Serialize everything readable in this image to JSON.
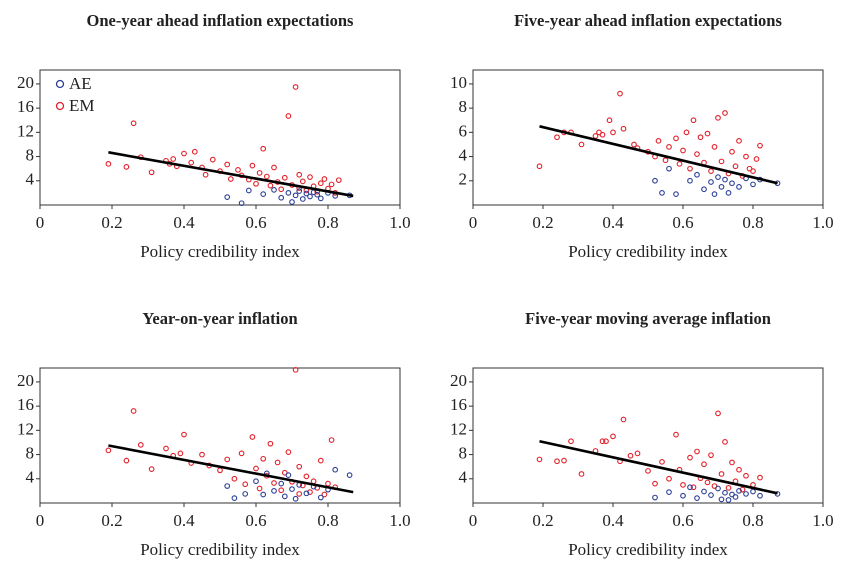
{
  "chart_data": [
    {
      "type": "scatter",
      "title": "One-year ahead inflation expectations",
      "xlabel": "Policy credibility index",
      "xlim": [
        0,
        1
      ],
      "xticks": [
        0,
        0.2,
        0.4,
        0.6,
        0.8,
        {
          "value": 1,
          "label": "1.0"
        }
      ],
      "ylim": [
        0,
        22.3
      ],
      "yticks": [
        4,
        8,
        12,
        16,
        20
      ],
      "legend": "upper left",
      "series": [
        {
          "name": "AE",
          "color": "#2b3f96",
          "x": [
            0.52,
            0.56,
            0.58,
            0.62,
            0.65,
            0.67,
            0.69,
            0.7,
            0.71,
            0.72,
            0.73,
            0.74,
            0.75,
            0.76,
            0.77,
            0.78,
            0.8,
            0.82,
            0.86
          ],
          "values": [
            1.3,
            0.3,
            2.4,
            1.8,
            2.5,
            1.2,
            2.0,
            0.5,
            1.6,
            2.3,
            1.0,
            1.9,
            1.4,
            2.1,
            1.7,
            1.1,
            2.0,
            1.5,
            1.6
          ]
        },
        {
          "name": "EM",
          "color": "#e3202a",
          "x": [
            0.19,
            0.24,
            0.26,
            0.28,
            0.31,
            0.35,
            0.36,
            0.37,
            0.38,
            0.4,
            0.42,
            0.43,
            0.45,
            0.46,
            0.48,
            0.5,
            0.52,
            0.53,
            0.55,
            0.56,
            0.58,
            0.59,
            0.6,
            0.61,
            0.62,
            0.63,
            0.64,
            0.65,
            0.66,
            0.67,
            0.68,
            0.69,
            0.7,
            0.71,
            0.72,
            0.72,
            0.73,
            0.74,
            0.75,
            0.76,
            0.77,
            0.78,
            0.79,
            0.8,
            0.81,
            0.82,
            0.83
          ],
          "values": [
            6.8,
            6.3,
            13.5,
            7.9,
            5.4,
            7.3,
            6.8,
            7.6,
            6.4,
            8.5,
            7.0,
            8.8,
            6.2,
            5.0,
            7.5,
            5.6,
            6.7,
            4.3,
            5.8,
            4.9,
            4.2,
            6.5,
            3.5,
            5.3,
            9.3,
            4.7,
            3.2,
            6.2,
            3.8,
            2.6,
            4.5,
            14.7,
            3.3,
            19.5,
            2.8,
            5.0,
            3.9,
            2.4,
            4.6,
            3.1,
            2.2,
            3.6,
            4.3,
            2.7,
            3.4,
            2.0,
            4.1
          ]
        }
      ],
      "fit_line": {
        "x": [
          0.19,
          0.87
        ],
        "y": [
          8.7,
          1.5
        ]
      }
    },
    {
      "type": "scatter",
      "title": "Five-year ahead inflation expectations",
      "xlabel": "Policy credibility index",
      "xlim": [
        0,
        1
      ],
      "xticks": [
        0,
        0.2,
        0.4,
        0.6,
        0.8,
        {
          "value": 1,
          "label": "1.0"
        }
      ],
      "ylim": [
        0,
        11.15
      ],
      "yticks": [
        2,
        4,
        6,
        8,
        10
      ],
      "legend": false,
      "series": [
        {
          "name": "AE",
          "color": "#2b3f96",
          "x": [
            0.52,
            0.54,
            0.56,
            0.58,
            0.62,
            0.64,
            0.66,
            0.68,
            0.69,
            0.7,
            0.71,
            0.72,
            0.73,
            0.74,
            0.76,
            0.78,
            0.8,
            0.82,
            0.87
          ],
          "values": [
            2.0,
            1.0,
            3.0,
            0.9,
            2.0,
            2.5,
            1.3,
            1.9,
            0.9,
            2.3,
            1.5,
            2.1,
            1.0,
            1.8,
            1.5,
            2.2,
            1.7,
            2.1,
            1.8
          ]
        },
        {
          "name": "EM",
          "color": "#e3202a",
          "x": [
            0.19,
            0.24,
            0.26,
            0.28,
            0.31,
            0.35,
            0.36,
            0.37,
            0.39,
            0.4,
            0.42,
            0.43,
            0.46,
            0.47,
            0.5,
            0.52,
            0.53,
            0.55,
            0.56,
            0.58,
            0.59,
            0.6,
            0.61,
            0.62,
            0.63,
            0.64,
            0.65,
            0.66,
            0.67,
            0.68,
            0.69,
            0.7,
            0.71,
            0.72,
            0.73,
            0.74,
            0.75,
            0.76,
            0.77,
            0.78,
            0.79,
            0.8,
            0.81,
            0.82
          ],
          "values": [
            3.2,
            5.6,
            6.0,
            6.0,
            5.0,
            5.7,
            6.0,
            5.8,
            7.0,
            6.0,
            9.2,
            6.3,
            5.0,
            4.7,
            4.4,
            4.0,
            5.3,
            3.7,
            4.8,
            5.5,
            3.4,
            4.5,
            6.0,
            3.0,
            7.0,
            4.2,
            5.6,
            3.5,
            5.9,
            2.8,
            4.8,
            7.2,
            3.6,
            7.6,
            2.6,
            4.4,
            3.2,
            5.3,
            2.4,
            4.0,
            3.0,
            2.8,
            3.8,
            4.9
          ]
        }
      ],
      "fit_line": {
        "x": [
          0.19,
          0.87
        ],
        "y": [
          6.5,
          1.8
        ]
      }
    },
    {
      "type": "scatter",
      "title": "Year-on-year inflation",
      "xlabel": "Policy credibility index",
      "xlim": [
        0,
        1
      ],
      "xticks": [
        0,
        0.2,
        0.4,
        0.6,
        0.8,
        {
          "value": 1,
          "label": "1.0"
        }
      ],
      "ylim": [
        0,
        22.3
      ],
      "yticks": [
        4,
        8,
        12,
        16,
        20
      ],
      "legend": false,
      "series": [
        {
          "name": "AE",
          "color": "#2b3f96",
          "x": [
            0.52,
            0.54,
            0.57,
            0.6,
            0.62,
            0.63,
            0.65,
            0.67,
            0.68,
            0.69,
            0.7,
            0.71,
            0.72,
            0.74,
            0.76,
            0.78,
            0.8,
            0.82,
            0.86
          ],
          "values": [
            2.8,
            0.8,
            1.5,
            3.6,
            1.4,
            4.9,
            2.0,
            3.2,
            1.1,
            4.6,
            2.3,
            0.7,
            3.0,
            1.6,
            2.7,
            0.9,
            2.2,
            5.5,
            4.6
          ]
        },
        {
          "name": "EM",
          "color": "#e3202a",
          "x": [
            0.19,
            0.24,
            0.26,
            0.28,
            0.31,
            0.35,
            0.37,
            0.39,
            0.4,
            0.42,
            0.45,
            0.47,
            0.5,
            0.52,
            0.54,
            0.56,
            0.57,
            0.59,
            0.6,
            0.61,
            0.62,
            0.63,
            0.64,
            0.65,
            0.66,
            0.67,
            0.68,
            0.69,
            0.7,
            0.71,
            0.72,
            0.72,
            0.73,
            0.74,
            0.75,
            0.76,
            0.77,
            0.78,
            0.79,
            0.8,
            0.81,
            0.82
          ],
          "values": [
            8.7,
            7.0,
            15.2,
            9.6,
            5.6,
            9.0,
            7.8,
            8.2,
            11.3,
            6.6,
            8.0,
            6.2,
            5.4,
            7.2,
            4.0,
            8.2,
            3.1,
            10.9,
            5.7,
            2.4,
            7.3,
            4.5,
            9.8,
            3.3,
            6.7,
            2.1,
            5.0,
            8.4,
            3.5,
            22.0,
            1.5,
            6.0,
            2.9,
            4.4,
            1.8,
            3.6,
            2.5,
            7.0,
            1.4,
            3.2,
            10.4,
            2.6
          ]
        }
      ],
      "fit_line": {
        "x": [
          0.19,
          0.87
        ],
        "y": [
          9.5,
          1.8
        ]
      }
    },
    {
      "type": "scatter",
      "title": "Five-year moving average inflation",
      "xlabel": "Policy credibility index",
      "xlim": [
        0,
        1
      ],
      "xticks": [
        0,
        0.2,
        0.4,
        0.6,
        0.8,
        {
          "value": 1,
          "label": "1.0"
        }
      ],
      "ylim": [
        0,
        22.3
      ],
      "yticks": [
        4,
        8,
        12,
        16,
        20
      ],
      "legend": false,
      "series": [
        {
          "name": "AE",
          "color": "#2b3f96",
          "x": [
            0.52,
            0.56,
            0.6,
            0.62,
            0.64,
            0.66,
            0.68,
            0.7,
            0.71,
            0.72,
            0.73,
            0.74,
            0.75,
            0.76,
            0.78,
            0.8,
            0.82,
            0.87
          ],
          "values": [
            0.9,
            1.8,
            1.2,
            2.6,
            0.8,
            1.9,
            1.3,
            2.4,
            0.6,
            1.7,
            0.5,
            1.4,
            1.0,
            2.0,
            1.5,
            1.9,
            1.2,
            1.5
          ]
        },
        {
          "name": "EM",
          "color": "#e3202a",
          "x": [
            0.19,
            0.24,
            0.26,
            0.28,
            0.31,
            0.35,
            0.37,
            0.38,
            0.4,
            0.42,
            0.43,
            0.45,
            0.47,
            0.5,
            0.52,
            0.54,
            0.56,
            0.58,
            0.59,
            0.6,
            0.62,
            0.63,
            0.64,
            0.65,
            0.66,
            0.67,
            0.68,
            0.69,
            0.7,
            0.71,
            0.72,
            0.73,
            0.74,
            0.75,
            0.76,
            0.77,
            0.78,
            0.8,
            0.82
          ],
          "values": [
            7.2,
            6.9,
            7.0,
            10.2,
            4.8,
            8.6,
            10.2,
            10.2,
            11.0,
            6.9,
            13.8,
            7.8,
            8.2,
            5.3,
            3.2,
            6.8,
            4.0,
            11.3,
            5.5,
            3.0,
            7.5,
            2.6,
            8.5,
            4.1,
            6.4,
            3.4,
            7.9,
            2.8,
            14.8,
            4.8,
            10.1,
            2.5,
            6.7,
            3.6,
            5.5,
            2.2,
            4.5,
            3.0,
            4.2
          ]
        }
      ],
      "fit_line": {
        "x": [
          0.19,
          0.87
        ],
        "y": [
          10.2,
          1.6
        ]
      }
    }
  ]
}
